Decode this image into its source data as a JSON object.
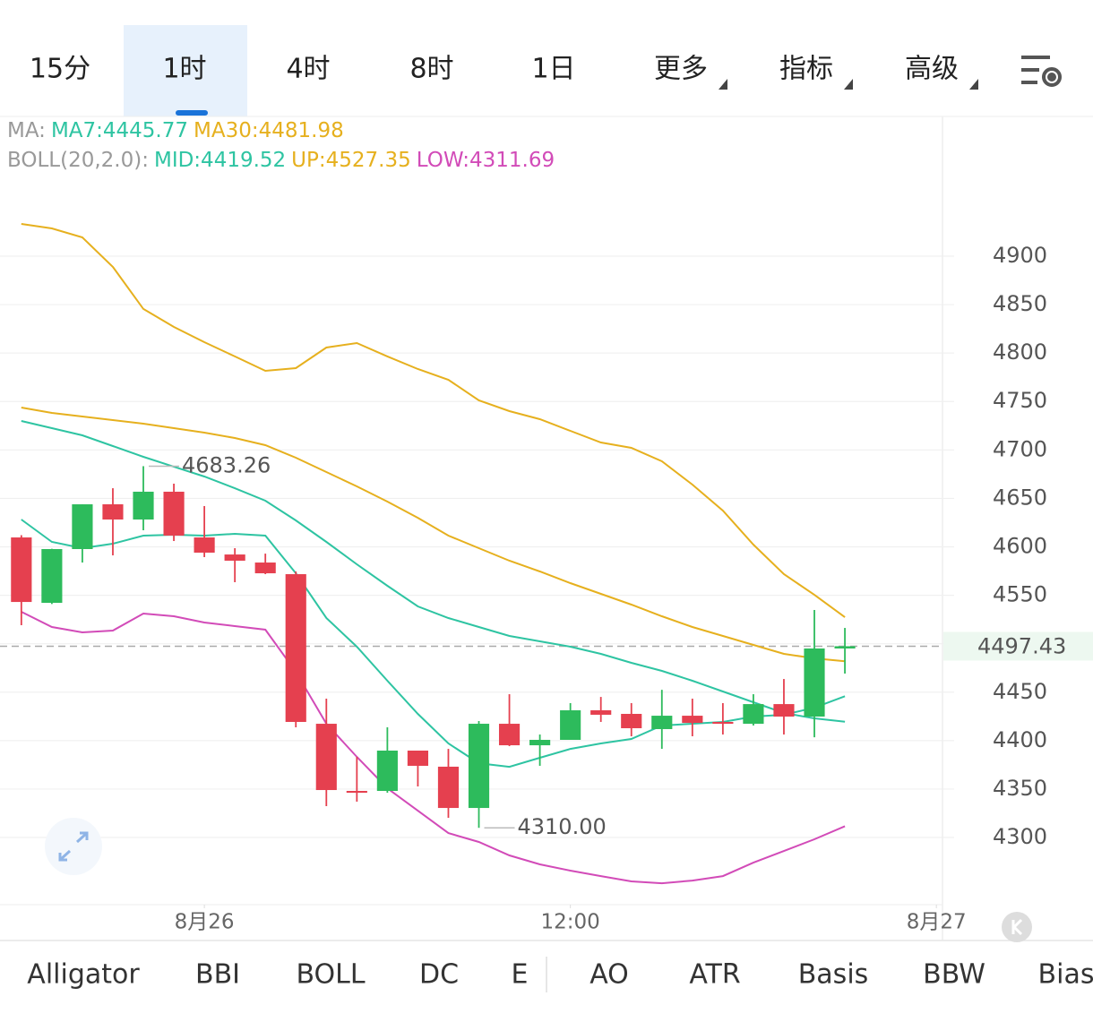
{
  "tabs": [
    "15分",
    "1时",
    "4时",
    "8时",
    "1日",
    "更多",
    "指标",
    "高级"
  ],
  "selected_tab": 1,
  "indicator_tabs": [
    "Alligator",
    "BBI",
    "BOLL",
    "DC",
    "E",
    "AO",
    "ATR",
    "Basis",
    "BBW",
    "Bias"
  ],
  "selected_indicator": 2,
  "chart_data": {
    "type": "candlestick",
    "x": [
      0,
      1,
      2,
      3,
      4,
      5,
      6,
      7,
      8,
      9,
      10,
      11,
      12,
      13,
      14,
      15,
      16,
      17,
      18,
      19,
      20,
      21,
      22,
      23,
      24,
      25,
      26,
      27
    ],
    "open": [
      4609.7,
      4542.2,
      4597.7,
      4643.9,
      4628.2,
      4656.9,
      4609.7,
      4592.1,
      4583.8,
      4571.8,
      4417.4,
      4348.1,
      4348.1,
      4389.7,
      4373.1,
      4330.5,
      4417.4,
      4395.2,
      4400.8,
      4431.3,
      4427.6,
      4411.9,
      4425.7,
      4419.3,
      4417.4,
      4437.7,
      4424.8,
      4495.1
    ],
    "high": [
      4612,
      4598,
      4643.9,
      4660.5,
      4683.26,
      4665.2,
      4642.1,
      4598.6,
      4593,
      4574.6,
      4443.3,
      4383.2,
      4413.7,
      4389.7,
      4391.5,
      4420.2,
      4447.9,
      4406.3,
      4438.7,
      4445.1,
      4438.7,
      4452.5,
      4443.3,
      4438.7,
      4447.9,
      4463.6,
      4534.8,
      4516.3
    ],
    "low": [
      4519.1,
      4541,
      4583.8,
      4591.2,
      4617.1,
      4606,
      4589.4,
      4563.5,
      4571.8,
      4413.7,
      4332.4,
      4337,
      4346.2,
      4352.7,
      4320.3,
      4310,
      4394.3,
      4374,
      4400.8,
      4419.3,
      4404.5,
      4391.5,
      4404.5,
      4406.3,
      4415.6,
      4406.3,
      4403.5,
      4469.2
    ],
    "close": [
      4543.1,
      4597.7,
      4643.9,
      4628.2,
      4656.9,
      4611.6,
      4594,
      4585.7,
      4572.7,
      4419.3,
      4349,
      4346.2,
      4389.7,
      4374,
      4330.5,
      4417.4,
      4395.2,
      4400.8,
      4431.3,
      4426.7,
      4412.8,
      4425.7,
      4418.3,
      4417.4,
      4437.7,
      4424.8,
      4495.1,
      4497.43
    ],
    "up_color": "#2dbb5c",
    "down_color": "#e5404f",
    "legend_groups": [
      {
        "label": "MA:",
        "series": [
          0,
          1
        ]
      },
      {
        "label": "BOLL(20,2.0):",
        "series": [
          2,
          3,
          4
        ]
      }
    ],
    "series": [
      {
        "name": "MA7:4445.77",
        "color": "#2ec4a2",
        "values": [
          4628.2,
          4605.1,
          4598.6,
          4603.2,
          4611.6,
          4612.5,
          4611.6,
          4613.4,
          4611.6,
          4572.7,
          4526.5,
          4496.9,
          4461.8,
          4427.6,
          4397.1,
          4376.7,
          4373,
          4382.3,
          4391.5,
          4397.1,
          4401.7,
          4415.6,
          4417.4,
          4419.3,
          4424.8,
          4426.7,
          4434,
          4445.77
        ]
      },
      {
        "name": "MA30:4481.98",
        "color": "#e6b01e",
        "values": [
          4743.8,
          4738.2,
          4734.5,
          4730.8,
          4727.1,
          4722.5,
          4717.9,
          4712.3,
          4704.9,
          4692,
          4677.2,
          4662.4,
          4646.7,
          4630,
          4611.6,
          4598.6,
          4585.7,
          4574.6,
          4562.6,
          4551.5,
          4540.4,
          4528.4,
          4517.3,
          4508,
          4498.8,
          4489.5,
          4484.9,
          4481.98
        ]
      },
      {
        "name": "MID:4419.52",
        "color": "#2ec4a2",
        "values": [
          4729.9,
          4722.5,
          4715.1,
          4704,
          4692.9,
          4682.7,
          4672.6,
          4660.5,
          4647.6,
          4627.3,
          4605.1,
          4582,
          4559.8,
          4538.5,
          4526.5,
          4517.3,
          4508,
          4502.5,
          4496.9,
          4489.5,
          4480.3,
          4472,
          4461.8,
          4450.7,
          4439.6,
          4428.5,
          4423,
          4419.52
        ]
      },
      {
        "name": "UP:4527.35",
        "color": "#e6b01e",
        "values": [
          4933.3,
          4928.6,
          4919.4,
          4888.9,
          4845.5,
          4827,
          4811.2,
          4796.5,
          4781.7,
          4784.4,
          4805.7,
          4810.3,
          4796.5,
          4783.5,
          4772.4,
          4751.2,
          4740.1,
          4731.7,
          4719.7,
          4707.7,
          4702.2,
          4688.3,
          4664.3,
          4637.4,
          4602.3,
          4571.8,
          4550.5,
          4527.35
        ]
      },
      {
        "name": "LOW:4311.69",
        "color": "#d24bb8",
        "values": [
          4533,
          4517.3,
          4511.7,
          4513.6,
          4531.1,
          4528.4,
          4521.9,
          4518.2,
          4514.5,
          4471,
          4417.4,
          4383.2,
          4350.8,
          4327.7,
          4304.6,
          4295.4,
          4281.5,
          4272.3,
          4265.8,
          4260.2,
          4254.7,
          4252.8,
          4255.6,
          4260.2,
          4274.1,
          4286.1,
          4298.2,
          4311.69
        ]
      }
    ],
    "annotations": [
      {
        "index": 4,
        "value": 4683.26,
        "label": "4683.26"
      },
      {
        "index": 15,
        "value": 4310,
        "label": "4310.00"
      }
    ],
    "current_price": 4497.43,
    "xlim": [
      -0.7,
      30.2
    ],
    "xticks": [
      {
        "value": 6,
        "label": "8月26"
      },
      {
        "value": 18,
        "label": "12:00"
      },
      {
        "value": 30,
        "label": "8月27"
      }
    ],
    "ylim": [
      4230.7,
      5044.2
    ],
    "yticks": [
      4300,
      4350,
      4400,
      4450,
      4500,
      4550,
      4600,
      4650,
      4700,
      4750,
      4800,
      4850,
      4900
    ],
    "grid": true
  }
}
